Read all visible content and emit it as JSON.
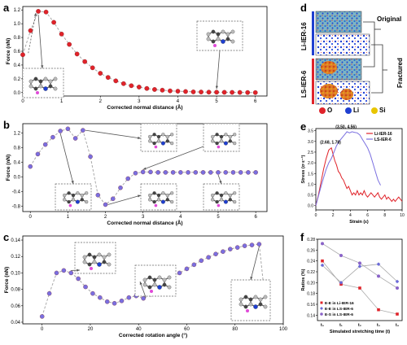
{
  "panels": {
    "a": "a",
    "b": "b",
    "c": "c",
    "d": "d",
    "e": "e",
    "f": "f"
  },
  "colors": {
    "red_marker": "#e0232a",
    "blue_marker": "#7a6fe0",
    "purple_marker": "#8a63c8",
    "gray_line": "#9a9a9a",
    "atom_O": "#e0232a",
    "atom_Li": "#1f3fd1",
    "atom_Si": "#e8c500"
  },
  "chart_data": [
    {
      "id": "a",
      "type": "scatter",
      "xlabel": "Corrected normal distance (Å)",
      "ylabel": "Force (nN)",
      "xlim": [
        0,
        6.3
      ],
      "ylim": [
        -0.05,
        1.25
      ],
      "xticks": [
        0,
        1,
        2,
        3,
        4,
        5,
        6
      ],
      "yticks": [
        0.0,
        0.2,
        0.4,
        0.6,
        0.8,
        1.0,
        1.2
      ],
      "ytick_labels": [
        "0.0",
        "0.2",
        "0.4",
        "0.6",
        "0.8",
        "1.0",
        "1.2"
      ],
      "x": [
        0.0,
        0.2,
        0.4,
        0.6,
        0.8,
        1.0,
        1.2,
        1.4,
        1.6,
        1.8,
        2.0,
        2.2,
        2.4,
        2.6,
        2.8,
        3.0,
        3.2,
        3.4,
        3.6,
        3.8,
        4.0,
        4.2,
        4.4,
        4.6,
        4.8,
        5.0,
        5.2,
        5.4,
        5.6,
        5.8,
        6.0
      ],
      "y": [
        0.55,
        0.9,
        1.18,
        1.17,
        1.02,
        0.85,
        0.7,
        0.56,
        0.45,
        0.36,
        0.28,
        0.22,
        0.17,
        0.13,
        0.1,
        0.08,
        0.06,
        0.045,
        0.035,
        0.025,
        0.02,
        0.015,
        0.01,
        0.008,
        0.006,
        0.005,
        0.004,
        0.003,
        0.002,
        0.001,
        0.0
      ]
    },
    {
      "id": "b",
      "type": "scatter",
      "xlabel": "Corrected normal distance (Å)",
      "ylabel": "Force (nN)",
      "xlim": [
        -0.2,
        6.3
      ],
      "ylim": [
        -0.95,
        1.45
      ],
      "xticks": [
        0,
        1,
        2,
        3,
        4,
        5,
        6
      ],
      "yticks": [
        -0.8,
        -0.4,
        0.0,
        0.4,
        0.8,
        1.2
      ],
      "ytick_labels": [
        "-0.8",
        "-0.4",
        "0.0",
        "0.4",
        "0.8",
        "1.2"
      ],
      "x": [
        0.0,
        0.2,
        0.4,
        0.6,
        0.8,
        1.0,
        1.2,
        1.4,
        1.6,
        1.8,
        2.0,
        2.2,
        2.4,
        2.6,
        2.8,
        3.0,
        3.2,
        3.4,
        3.6,
        3.8,
        4.0,
        4.2,
        4.4,
        4.6,
        4.8,
        5.0,
        5.2,
        5.4,
        5.6,
        5.8,
        6.0
      ],
      "y": [
        0.28,
        0.62,
        0.88,
        1.08,
        1.25,
        1.31,
        1.05,
        1.27,
        0.55,
        -0.5,
        -0.76,
        -0.6,
        -0.3,
        -0.05,
        0.1,
        0.13,
        0.13,
        0.12,
        0.12,
        0.12,
        0.12,
        0.12,
        0.12,
        0.12,
        0.12,
        0.12,
        0.12,
        0.12,
        0.12,
        0.12,
        0.12
      ]
    },
    {
      "id": "c",
      "type": "scatter",
      "xlabel": "Corrected rotation angle (°)",
      "ylabel": "Force (nN)",
      "xlim": [
        -8,
        100
      ],
      "ylim": [
        0.038,
        0.145
      ],
      "xticks": [
        0,
        20,
        40,
        60,
        80,
        100
      ],
      "yticks": [
        0.04,
        0.06,
        0.08,
        0.1,
        0.12,
        0.14
      ],
      "ytick_labels": [
        "0.04",
        "0.06",
        "0.08",
        "0.10",
        "0.12",
        "0.14"
      ],
      "x": [
        0,
        3,
        6,
        9,
        12,
        15,
        18,
        21,
        24,
        27,
        30,
        33,
        36,
        39,
        42,
        45,
        48,
        51,
        54,
        57,
        60,
        63,
        66,
        69,
        72,
        75,
        78,
        81,
        84,
        87,
        90,
        93
      ],
      "y": [
        0.047,
        0.075,
        0.1,
        0.103,
        0.1,
        0.093,
        0.083,
        0.075,
        0.07,
        0.065,
        0.063,
        0.066,
        0.07,
        0.072,
        0.069,
        0.074,
        0.08,
        0.088,
        0.095,
        0.1,
        0.105,
        0.11,
        0.115,
        0.119,
        0.123,
        0.126,
        0.129,
        0.131,
        0.133,
        0.134,
        0.135,
        0.053
      ]
    },
    {
      "id": "e",
      "type": "line",
      "xlabel": "Strain (ε)",
      "ylabel": "Stress (σ·ε⁻¹)",
      "xlim": [
        0,
        10
      ],
      "ylim": [
        -0.2,
        3.6
      ],
      "xticks": [
        0,
        2,
        4,
        6,
        8,
        10
      ],
      "yticks": [
        0.0,
        0.5,
        1.0,
        1.5,
        2.0,
        2.5,
        3.0,
        3.5
      ],
      "ytick_labels": [
        "0.0",
        "0.5",
        "1.0",
        "1.5",
        "2.0",
        "2.5",
        "3.0",
        "3.5"
      ],
      "annotations": [
        "(3.50, 4.56)",
        "(2.68, 1.78)"
      ],
      "legend": "top-right",
      "series": [
        {
          "name": "Li-IER-16",
          "color": "#e0232a",
          "x": [
            0,
            0.3,
            0.6,
            0.9,
            1.2,
            1.5,
            1.8,
            2.0,
            2.2,
            2.4,
            2.6,
            2.8,
            3.0,
            3.2,
            3.4,
            3.6,
            3.8,
            4.0,
            4.2,
            4.4,
            4.6,
            4.8,
            5.0,
            5.2,
            5.4,
            5.6,
            5.8,
            6.0,
            6.2,
            6.4,
            6.6,
            6.8,
            7.0,
            7.2,
            7.4,
            7.6,
            7.8,
            8.0,
            8.2,
            8.4,
            8.6,
            8.8,
            9.0,
            9.2,
            9.4,
            9.6,
            9.8,
            10.0
          ],
          "y": [
            0,
            0.5,
            1.1,
            1.7,
            2.2,
            2.6,
            2.7,
            2.4,
            2.1,
            1.9,
            1.6,
            1.5,
            1.3,
            1.2,
            1.0,
            0.8,
            0.9,
            0.7,
            0.5,
            0.6,
            0.5,
            0.7,
            0.5,
            0.6,
            0.5,
            0.7,
            0.5,
            0.4,
            0.5,
            0.6,
            0.5,
            0.4,
            0.5,
            0.6,
            0.4,
            0.3,
            0.4,
            0.5,
            0.3,
            0.4,
            0.3,
            0.2,
            0.3,
            0.2,
            0.3,
            0.4,
            0.3,
            0.2
          ]
        },
        {
          "name": "LS-IER-6",
          "color": "#7a6fe0",
          "x": [
            0,
            0.3,
            0.6,
            0.9,
            1.2,
            1.5,
            1.8,
            2.1,
            2.4,
            2.7,
            3.0,
            3.3,
            3.6,
            3.9,
            4.2,
            4.5,
            4.8,
            5.1,
            5.4,
            5.7,
            6.0,
            6.3,
            6.6,
            6.9,
            7.2,
            7.5
          ],
          "y": [
            0,
            0.45,
            0.9,
            1.3,
            1.7,
            2.0,
            2.2,
            2.5,
            2.8,
            3.0,
            3.15,
            3.3,
            3.45,
            3.4,
            3.45,
            3.42,
            3.4,
            3.3,
            3.1,
            2.9,
            2.7,
            2.4,
            2.0,
            1.6,
            1.2,
            0.95
          ]
        }
      ]
    },
    {
      "id": "f",
      "type": "line",
      "xlabel": "Simulated stretching time (t)",
      "ylabel": "Ratios (%)",
      "ylim": [
        0.13,
        0.28
      ],
      "categories": [
        "t₀",
        "t₁",
        "t₂",
        "t₃",
        "t₄"
      ],
      "yticks": [
        0.14,
        0.16,
        0.18,
        0.2,
        0.22,
        0.24,
        0.26,
        0.28
      ],
      "ytick_labels": [
        "0.14",
        "0.16",
        "0.18",
        "0.20",
        "0.22",
        "0.24",
        "0.26",
        "0.28"
      ],
      "legend": "bottom-left",
      "series": [
        {
          "name": "E-E in Li-IER-16",
          "color": "#e0232a",
          "values": [
            0.24,
            0.197,
            0.19,
            0.15,
            0.142
          ]
        },
        {
          "name": "E-E in LS-IER-6",
          "color": "#6a6ad8",
          "values": [
            0.232,
            0.2,
            0.23,
            0.234,
            0.202
          ]
        },
        {
          "name": "E-S in LS-IER-6",
          "color": "#8a63c8",
          "values": [
            0.272,
            0.25,
            0.236,
            0.212,
            0.19
          ]
        }
      ]
    }
  ],
  "panel_d": {
    "labels": {
      "li": "Li-IER-16",
      "ls": "LS-IER-6",
      "original": "Original",
      "fractured": "Fractured"
    },
    "legend": [
      {
        "symbol": "O",
        "color": "#e0232a"
      },
      {
        "symbol": "Li",
        "color": "#1f3fd1"
      },
      {
        "symbol": "Si",
        "color": "#e8c500"
      }
    ]
  }
}
